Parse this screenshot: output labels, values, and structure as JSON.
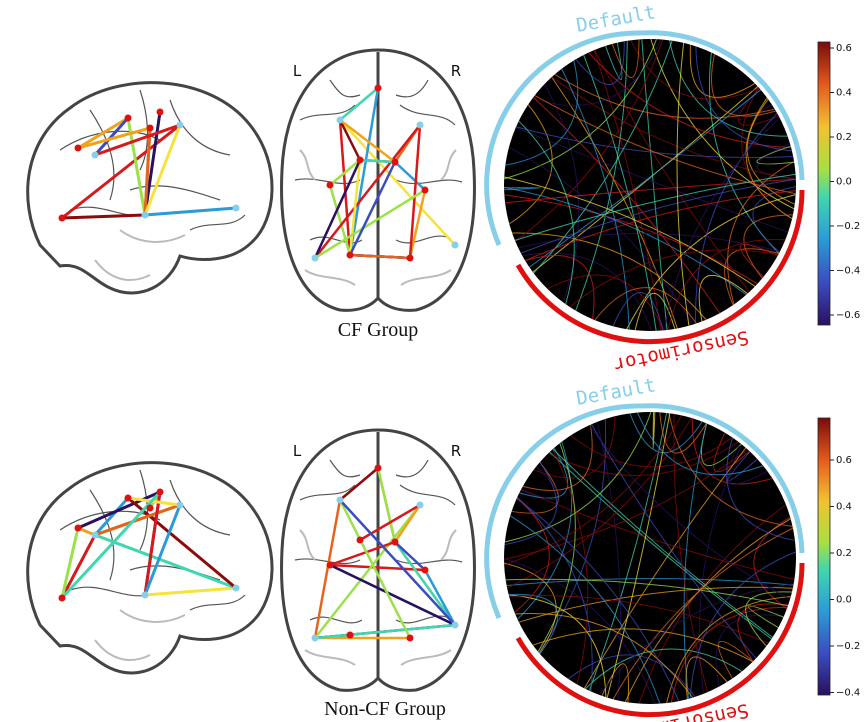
{
  "panels": [
    {
      "group_label": "CF Group",
      "orientation_labels": [
        "L",
        "R"
      ],
      "circle_labels": [
        "Default",
        "Sensorimotor"
      ],
      "colorbar_ticks": [
        "0.6",
        "0.4",
        "0.2",
        "0.0",
        "−0.2",
        "−0.4",
        "−0.6"
      ]
    },
    {
      "group_label": "Non-CF Group",
      "orientation_labels": [
        "L",
        "R"
      ],
      "circle_labels": [
        "Default",
        "Sensorimotor"
      ],
      "colorbar_ticks": [
        "0.6",
        "0.4",
        "0.2",
        "0.0",
        "−0.2",
        "−0.4"
      ]
    }
  ]
}
